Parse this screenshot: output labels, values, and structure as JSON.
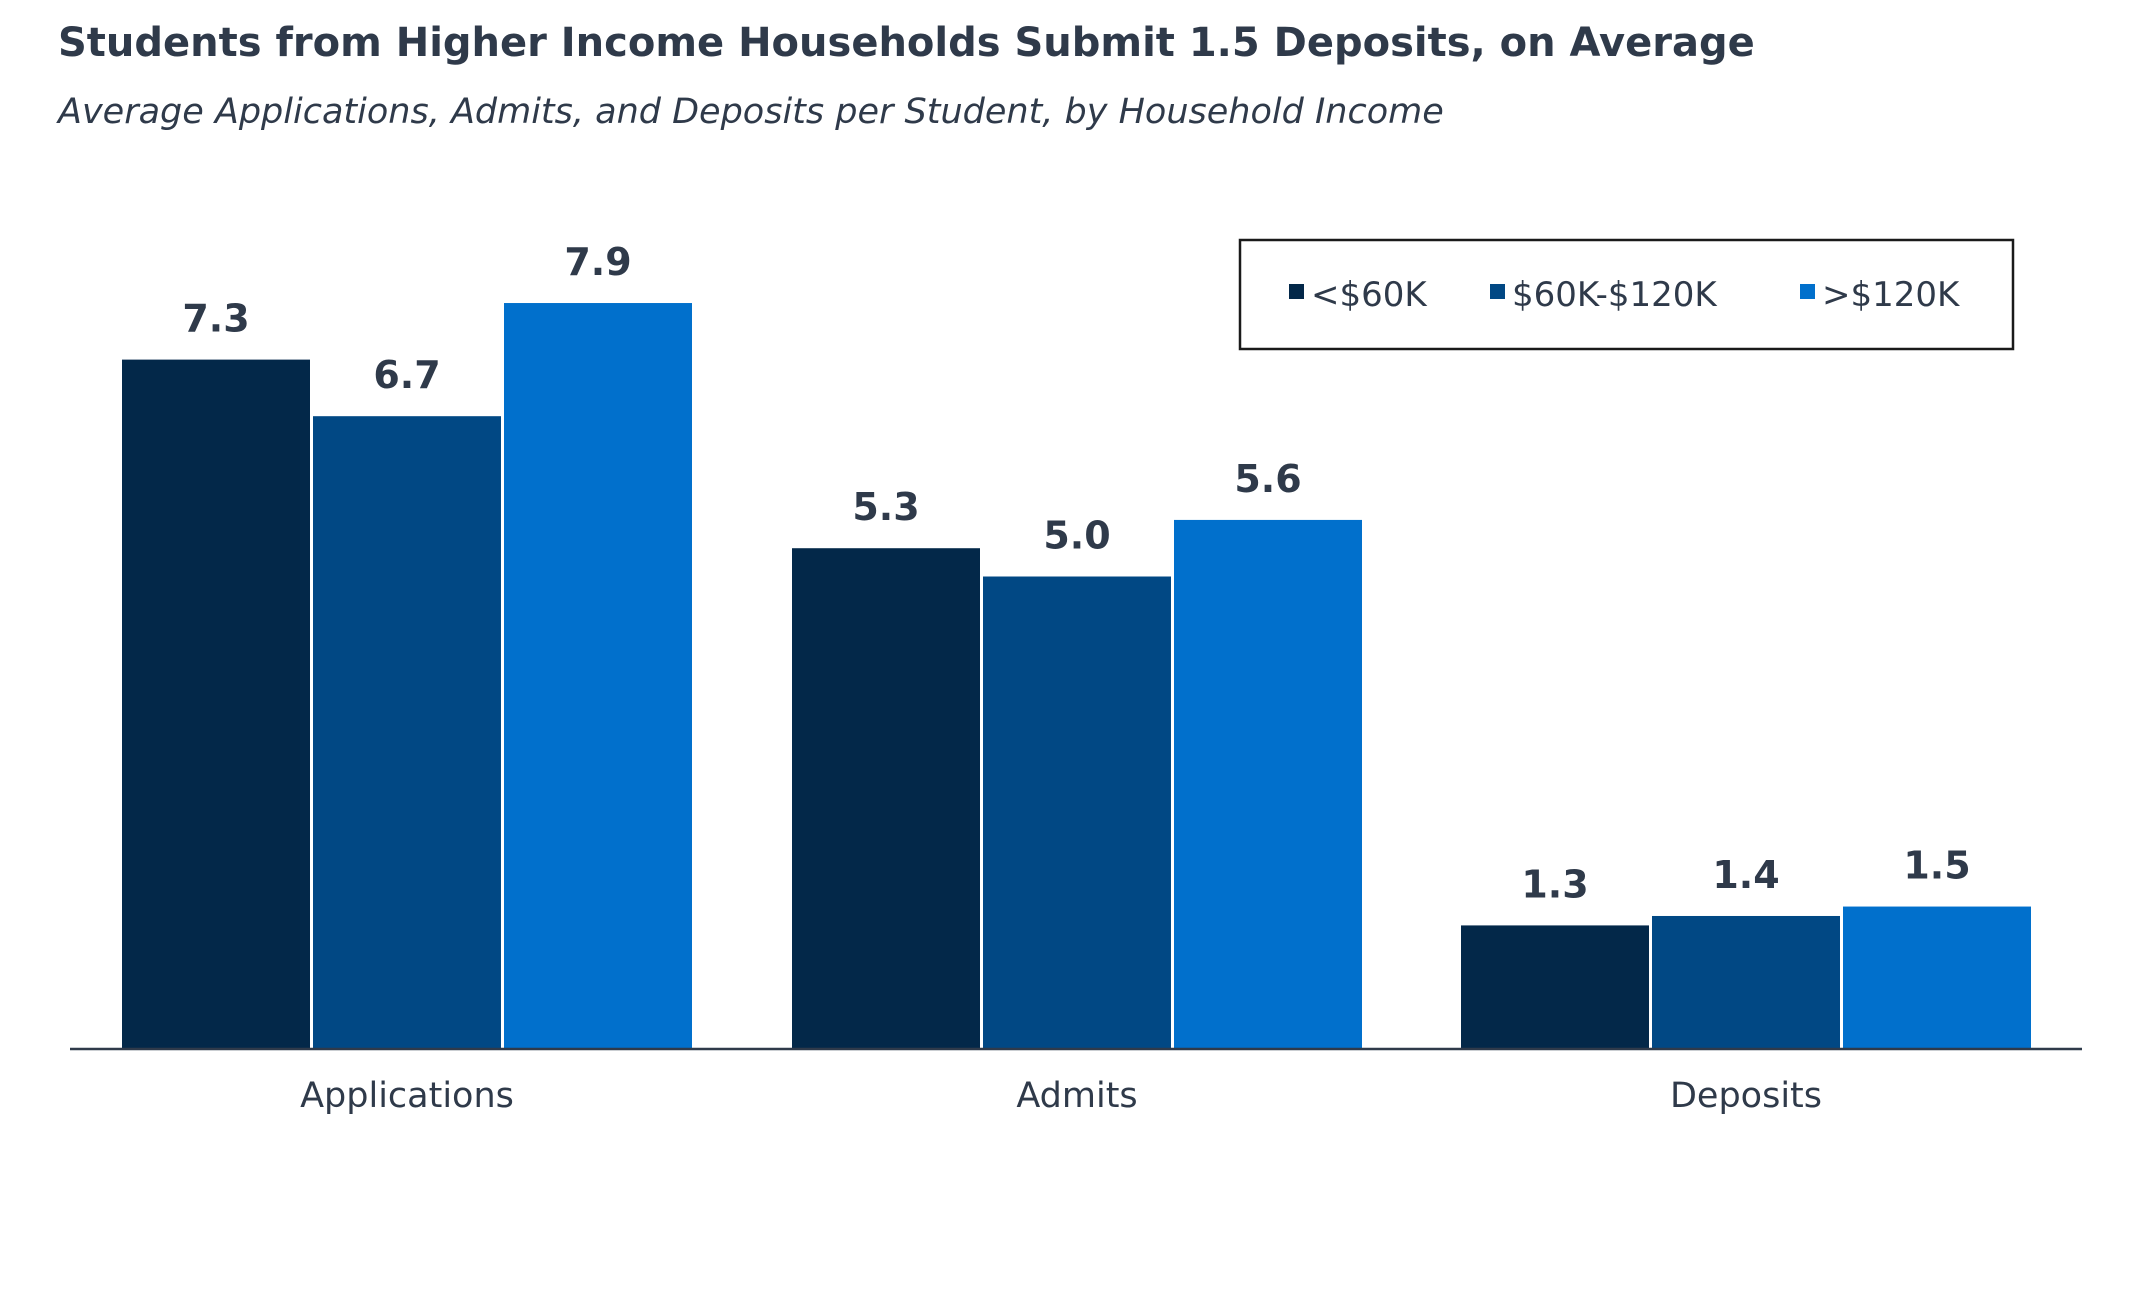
{
  "chart_data": {
    "type": "bar",
    "title": "Students from Higher Income Households Submit 1.5 Deposits, on Average",
    "subtitle": "Average Applications, Admits, and Deposits per Student, by Household Income",
    "categories": [
      "Applications",
      "Admits",
      "Deposits"
    ],
    "series": [
      {
        "name": "<$60K",
        "color": "#032849",
        "values": [
          7.3,
          5.3,
          1.3
        ]
      },
      {
        "name": "$60K-$120K",
        "color": "#014884",
        "values": [
          6.7,
          5.0,
          1.4
        ]
      },
      {
        "name": ">$120K",
        "color": "#0170cc",
        "values": [
          7.9,
          5.6,
          1.5
        ]
      }
    ],
    "ylim": [
      0,
      10.2
    ],
    "grid": false,
    "legend": "top-right",
    "data_labels": true
  }
}
